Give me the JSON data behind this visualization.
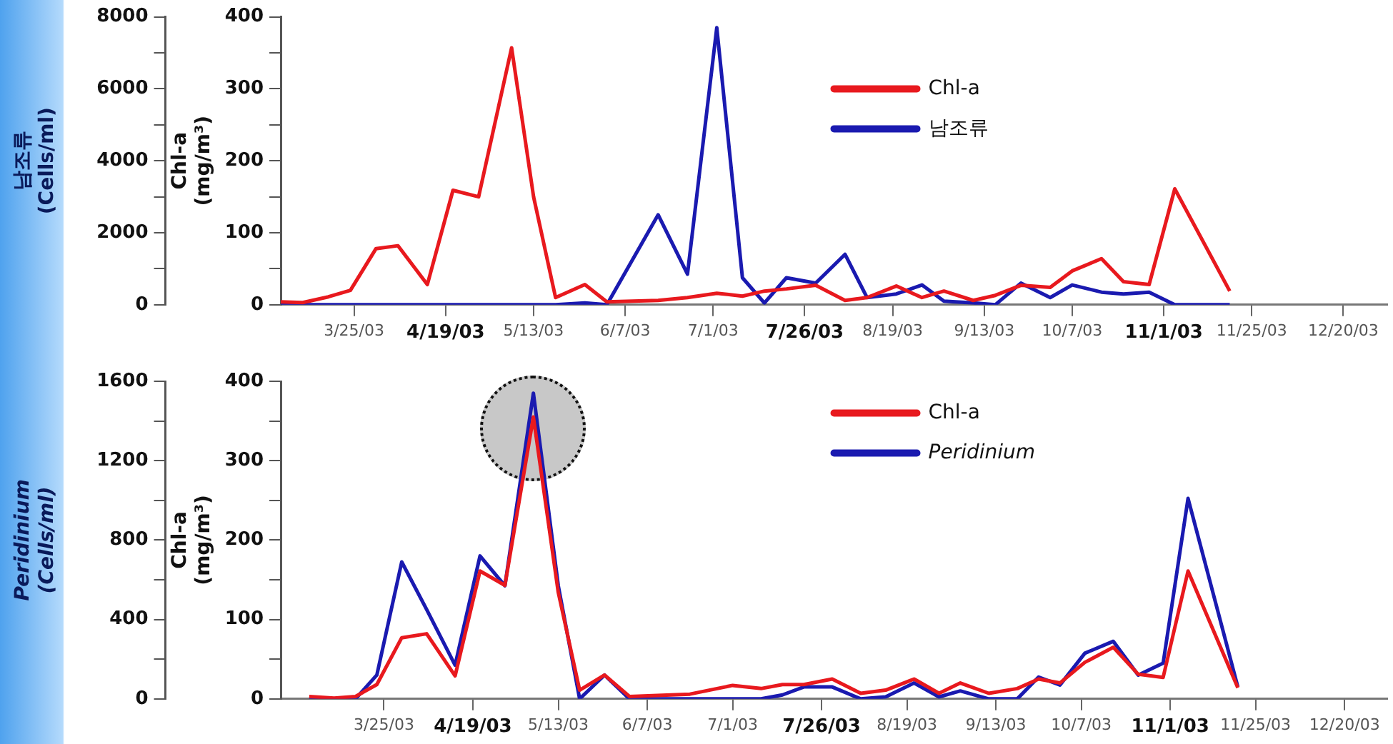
{
  "chart_data": [
    {
      "type": "line",
      "ylabel": "Chl-a\n(mg/m³)",
      "y2label": "남조류\n(Cells/ml)",
      "legend": "top",
      "grid": false,
      "marker": "none",
      "line_style": "solid",
      "xlim": [
        "2003-03-05",
        "2004-01-01"
      ],
      "xticks": [
        {
          "value": "2003-03-25",
          "label": "3/25/03"
        },
        {
          "value": "2003-04-19",
          "label": "4/19/03"
        },
        {
          "value": "2003-05-13",
          "label": "5/13/03"
        },
        {
          "value": "2003-06-07",
          "label": "6/7/03"
        },
        {
          "value": "2003-07-01",
          "label": "7/1/03"
        },
        {
          "value": "2003-07-26",
          "label": "7/26/03"
        },
        {
          "value": "2003-08-19",
          "label": "8/19/03"
        },
        {
          "value": "2003-09-13",
          "label": "9/13/03"
        },
        {
          "value": "2003-10-07",
          "label": "10/7/03"
        },
        {
          "value": "2003-11-01",
          "label": "11/1/03"
        },
        {
          "value": "2003-11-25",
          "label": "11/25/03"
        },
        {
          "value": "2003-12-20",
          "label": "12/20/03"
        }
      ],
      "ylim": [
        0,
        400
      ],
      "yticks": [
        0,
        {
          "value": 50,
          "label": null
        },
        100,
        {
          "value": 150,
          "label": null
        },
        200,
        {
          "value": 250,
          "label": null
        },
        300,
        {
          "value": 350,
          "label": null
        },
        400
      ],
      "y2lim": [
        0,
        8000
      ],
      "y2ticks": [
        0,
        {
          "value": 1000,
          "label": null
        },
        2000,
        {
          "value": 3000,
          "label": null
        },
        4000,
        {
          "value": 5000,
          "label": null
        },
        6000,
        {
          "value": 7000,
          "label": null
        },
        8000
      ],
      "series": [
        {
          "name": "Chl-a",
          "color": "#e8191e",
          "x": [
            "2003-03-05",
            "2003-03-11",
            "2003-03-18",
            "2003-03-24",
            "2003-03-31",
            "2003-04-06",
            "2003-04-14",
            "2003-04-21",
            "2003-04-28",
            "2003-05-07",
            "2003-05-13",
            "2003-05-19",
            "2003-05-27",
            "2003-06-02",
            "2003-06-16",
            "2003-06-24",
            "2003-07-02",
            "2003-07-09",
            "2003-07-15",
            "2003-07-21",
            "2003-07-29",
            "2003-08-06",
            "2003-08-12",
            "2003-08-20",
            "2003-08-27",
            "2003-09-02",
            "2003-09-10",
            "2003-09-16",
            "2003-09-23",
            "2003-10-01",
            "2003-10-07",
            "2003-10-15",
            "2003-10-21",
            "2003-10-28",
            "2003-11-04",
            "2003-11-19"
          ],
          "values": [
            4,
            3,
            11,
            20,
            78,
            82,
            28,
            159,
            150,
            357,
            150,
            10,
            28,
            4,
            6,
            10,
            16,
            12,
            19,
            22,
            27,
            6,
            10,
            26,
            10,
            19,
            6,
            13,
            27,
            24,
            47,
            64,
            32,
            28,
            161,
            19
          ]
        },
        {
          "name": "남조류",
          "color": "#1a1ab0",
          "axis": "y2",
          "x": [
            "2003-03-05",
            "2003-05-19",
            "2003-05-27",
            "2003-06-02",
            "2003-06-16",
            "2003-06-24",
            "2003-07-02",
            "2003-07-09",
            "2003-07-15",
            "2003-07-21",
            "2003-07-29",
            "2003-08-06",
            "2003-08-12",
            "2003-08-20",
            "2003-08-27",
            "2003-09-02",
            "2003-09-10",
            "2003-09-16",
            "2003-09-23",
            "2003-10-01",
            "2003-10-07",
            "2003-10-15",
            "2003-10-21",
            "2003-10-28",
            "2003-11-04",
            "2003-11-12",
            "2003-11-19"
          ],
          "values": [
            0,
            0,
            50,
            0,
            2500,
            850,
            7700,
            750,
            50,
            750,
            600,
            1400,
            200,
            300,
            550,
            100,
            50,
            0,
            600,
            200,
            550,
            350,
            300,
            350,
            0,
            0,
            0
          ]
        }
      ]
    },
    {
      "type": "line",
      "ylabel": "Chl-a\n(mg/m³)",
      "y2label": "Peridinium\n(Cells/ml)",
      "legend": "top",
      "grid": false,
      "marker": "none",
      "line_style": "solid",
      "xlim": [
        "2003-02-24",
        "2004-01-01"
      ],
      "xticks": [
        {
          "value": "2003-03-25",
          "label": "3/25/03"
        },
        {
          "value": "2003-04-19",
          "label": "4/19/03"
        },
        {
          "value": "2003-05-13",
          "label": "5/13/03"
        },
        {
          "value": "2003-06-07",
          "label": "6/7/03"
        },
        {
          "value": "2003-07-01",
          "label": "7/1/03"
        },
        {
          "value": "2003-07-26",
          "label": "7/26/03"
        },
        {
          "value": "2003-08-19",
          "label": "8/19/03"
        },
        {
          "value": "2003-09-13",
          "label": "9/13/03"
        },
        {
          "value": "2003-10-07",
          "label": "10/7/03"
        },
        {
          "value": "2003-11-01",
          "label": "11/1/03"
        },
        {
          "value": "2003-11-25",
          "label": "11/25/03"
        },
        {
          "value": "2003-12-20",
          "label": "12/20/03"
        }
      ],
      "ylim": [
        0,
        400
      ],
      "yticks": [
        0,
        {
          "value": 50,
          "label": null
        },
        100,
        {
          "value": 150,
          "label": null
        },
        200,
        {
          "value": 250,
          "label": null
        },
        300,
        {
          "value": 350,
          "label": null
        },
        400
      ],
      "y2lim": [
        0,
        1600
      ],
      "y2ticks": [
        0,
        {
          "value": 200,
          "label": null
        },
        400,
        {
          "value": 600,
          "label": null
        },
        800,
        {
          "value": 1000,
          "label": null
        },
        1200,
        {
          "value": 1400,
          "label": null
        },
        1600
      ],
      "x": [
        "2003-03-04",
        "2003-03-11",
        "2003-03-17",
        "2003-03-23",
        "2003-03-30",
        "2003-04-06",
        "2003-04-14",
        "2003-04-21",
        "2003-04-28",
        "2003-05-06",
        "2003-05-13",
        "2003-05-19",
        "2003-05-26",
        "2003-06-02",
        "2003-06-19",
        "2003-07-01",
        "2003-07-09",
        "2003-07-15",
        "2003-07-21",
        "2003-07-29",
        "2003-08-06",
        "2003-08-13",
        "2003-08-21",
        "2003-08-28",
        "2003-09-03",
        "2003-09-11",
        "2003-09-19",
        "2003-09-25",
        "2003-10-01",
        "2003-10-08",
        "2003-10-16",
        "2003-10-23",
        "2003-10-30",
        "2003-11-06",
        "2003-11-20"
      ],
      "series": [
        {
          "name": "Chl-a",
          "color": "#e8191e",
          "values": [
            3,
            1,
            3,
            18,
            77,
            82,
            29,
            161,
            143,
            355,
            134,
            11,
            30,
            3,
            6,
            17,
            13,
            18,
            18,
            25,
            7,
            11,
            25,
            7,
            20,
            7,
            13,
            25,
            20,
            46,
            65,
            31,
            27,
            161,
            14
          ]
        },
        {
          "name": "Peridinium",
          "color": "#1a1ab0",
          "axis": "y2",
          "values": [
            0,
            0,
            0,
            120,
            690,
            450,
            170,
            720,
            570,
            1540,
            570,
            0,
            120,
            0,
            0,
            0,
            0,
            20,
            60,
            60,
            0,
            10,
            80,
            10,
            40,
            0,
            0,
            110,
            70,
            230,
            290,
            120,
            180,
            1010,
            60
          ]
        }
      ]
    }
  ]
}
